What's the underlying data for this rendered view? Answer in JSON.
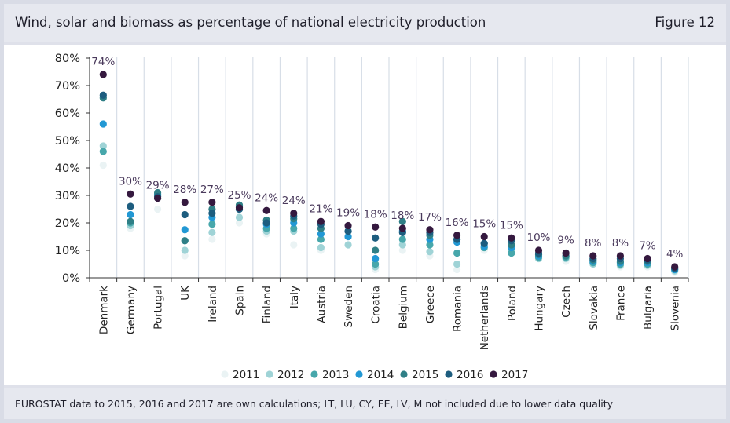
{
  "header": {
    "title": "Wind, solar and biomass as percentage of national electricity production",
    "figure_label": "Figure 12"
  },
  "footer": {
    "note": "EUROSTAT data to 2015, 2016 and 2017 are own calculations; LT, LU, CY, EE, LV, M not included due to lower data quality"
  },
  "colors": {
    "2011": "#eaf3f4",
    "2012": "#9fd3d6",
    "2013": "#47a7ab",
    "2014": "#2298d4",
    "2015": "#2f7f86",
    "2016": "#1d5d7f",
    "2017": "#35193f",
    "label": "#4a3a5c",
    "axis": "#333333",
    "grid": "#d7dee7"
  },
  "chart_data": {
    "type": "scatter",
    "title": "Wind, solar and biomass as percentage of national electricity production",
    "ylim": [
      0,
      80
    ],
    "yticks": [
      0,
      10,
      20,
      30,
      40,
      50,
      60,
      70,
      80
    ],
    "ytick_labels": [
      "0%",
      "10%",
      "20%",
      "30%",
      "40%",
      "50%",
      "60%",
      "70%",
      "80%"
    ],
    "grid": "vertical separators",
    "legend_position": "bottom",
    "categories": [
      "Denmark",
      "Germany",
      "Portugal",
      "UK",
      "Ireland",
      "Spain",
      "Finland",
      "Italy",
      "Austria",
      "Sweden",
      "Croatia",
      "Belgium",
      "Greece",
      "Romania",
      "Netherlands",
      "Poland",
      "Hungary",
      "Czech",
      "Slovakia",
      "France",
      "Bulgaria",
      "Slovenia"
    ],
    "top_labels": [
      "74%",
      "30%",
      "29%",
      "28%",
      "27%",
      "25%",
      "24%",
      "24%",
      "21%",
      "19%",
      "18%",
      "18%",
      "17%",
      "16%",
      "15%",
      "15%",
      "10%",
      "9%",
      "8%",
      "8%",
      "7%",
      "4%"
    ],
    "series": [
      {
        "name": "2011",
        "values": [
          41,
          18,
          25,
          8,
          14,
          20,
          16,
          12,
          10,
          12,
          3,
          10,
          8,
          3,
          10,
          9,
          7,
          6,
          5,
          4,
          4,
          2
        ]
      },
      {
        "name": "2012",
        "values": [
          48,
          19,
          29,
          10,
          16.5,
          22,
          17,
          17,
          11,
          12,
          4,
          12,
          9.5,
          5,
          11,
          10,
          7,
          7,
          5,
          4.5,
          4.5,
          2.5
        ]
      },
      {
        "name": "2013",
        "values": [
          46,
          20,
          30,
          13.5,
          19.5,
          25,
          18,
          18,
          14,
          15,
          5,
          14,
          12,
          9,
          11,
          9,
          7.5,
          7.5,
          5.5,
          5,
          5,
          3
        ]
      },
      {
        "name": "2014",
        "values": [
          56,
          23,
          30.5,
          17.5,
          22,
          26,
          19.5,
          20,
          16,
          15,
          7,
          17,
          14,
          13,
          11.5,
          11,
          8,
          8,
          6,
          5.5,
          5.5,
          3
        ]
      },
      {
        "name": "2015",
        "values": [
          65.5,
          20.5,
          31,
          13.5,
          25,
          26.5,
          21,
          21.5,
          18,
          17,
          10,
          20.5,
          15.5,
          14,
          12.5,
          12,
          8.5,
          8,
          6.5,
          6,
          6,
          3.5
        ]
      },
      {
        "name": "2016",
        "values": [
          66.5,
          26,
          29.5,
          23,
          23.5,
          25,
          20,
          22.5,
          19.5,
          17,
          14.5,
          16.5,
          16.5,
          14,
          12.5,
          13.5,
          9,
          9,
          7,
          7,
          6.5,
          3.5
        ]
      },
      {
        "name": "2017",
        "values": [
          74,
          30.5,
          29,
          27.5,
          27.5,
          25.5,
          24.5,
          23.5,
          20.5,
          19,
          18.5,
          18,
          17.5,
          15.5,
          15,
          14.5,
          10,
          9,
          8,
          8,
          7,
          4
        ]
      }
    ]
  }
}
